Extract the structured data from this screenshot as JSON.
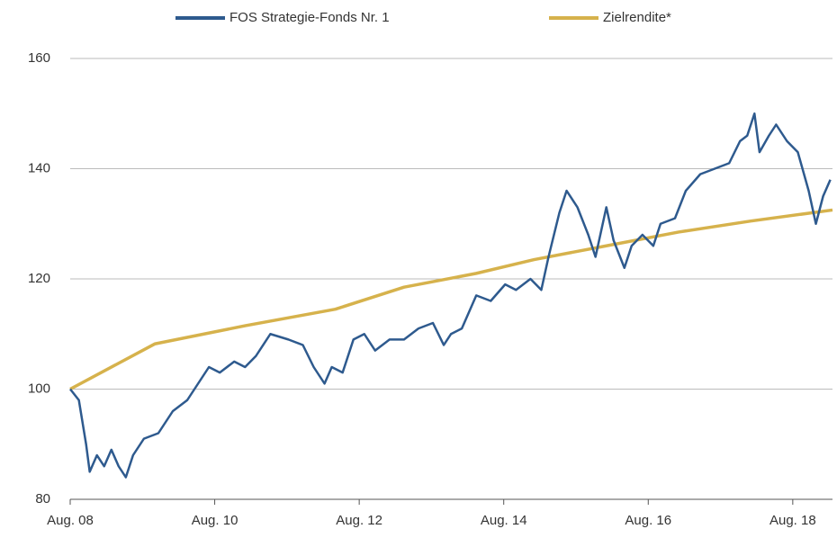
{
  "chart_data": {
    "type": "line",
    "series": [
      {
        "name": "FOS Strategie-Fonds Nr. 1",
        "color": "#2e5a8e",
        "x": [
          2008.58,
          2008.7,
          2008.8,
          2008.85,
          2008.95,
          2009.05,
          2009.15,
          2009.25,
          2009.35,
          2009.45,
          2009.6,
          2009.8,
          2010.0,
          2010.2,
          2010.35,
          2010.5,
          2010.65,
          2010.85,
          2011.0,
          2011.15,
          2011.35,
          2011.6,
          2011.8,
          2011.95,
          2012.1,
          2012.2,
          2012.35,
          2012.5,
          2012.65,
          2012.8,
          2013.0,
          2013.2,
          2013.4,
          2013.6,
          2013.75,
          2013.85,
          2014.0,
          2014.2,
          2014.4,
          2014.6,
          2014.75,
          2014.95,
          2015.1,
          2015.2,
          2015.35,
          2015.45,
          2015.6,
          2015.75,
          2015.85,
          2016.0,
          2016.1,
          2016.25,
          2016.35,
          2016.5,
          2016.65,
          2016.75,
          2016.95,
          2017.1,
          2017.3,
          2017.5,
          2017.7,
          2017.85,
          2017.95,
          2018.05,
          2018.12,
          2018.25,
          2018.35,
          2018.5,
          2018.65,
          2018.8,
          2018.9,
          2019.0,
          2019.1
        ],
        "values": [
          100,
          98,
          90,
          85,
          88,
          86,
          89,
          86,
          84,
          88,
          91,
          92,
          96,
          98,
          101,
          104,
          103,
          105,
          104,
          106,
          110,
          109,
          108,
          104,
          101,
          104,
          103,
          109,
          110,
          107,
          109,
          109,
          111,
          112,
          108,
          110,
          111,
          117,
          116,
          119,
          118,
          120,
          118,
          124,
          132,
          136,
          133,
          128,
          124,
          133,
          127,
          122,
          126,
          128,
          126,
          130,
          131,
          136,
          139,
          140,
          141,
          145,
          146,
          150,
          143,
          146,
          148,
          145,
          143,
          136,
          130,
          135,
          138
        ]
      },
      {
        "name": "Zielrendite*",
        "color": "#d6b24c",
        "x": [
          2008.58,
          2009.75,
          2011.0,
          2012.25,
          2013.2,
          2014.2,
          2015.0,
          2016.0,
          2017.0,
          2018.0,
          2019.13
        ],
        "values": [
          100,
          108.2,
          111.5,
          114.5,
          118.5,
          121,
          123.5,
          126,
          128.5,
          130.5,
          132.5
        ]
      }
    ],
    "xlim": [
      2008.58,
      2019.13
    ],
    "xticks": [
      {
        "value": 2008.58,
        "label": "Aug. 08"
      },
      {
        "value": 2010.58,
        "label": "Aug. 10"
      },
      {
        "value": 2012.58,
        "label": "Aug. 12"
      },
      {
        "value": 2014.58,
        "label": "Aug. 14"
      },
      {
        "value": 2016.58,
        "label": "Aug. 16"
      },
      {
        "value": 2018.58,
        "label": "Aug. 18"
      }
    ],
    "ylim": [
      80,
      160
    ],
    "yticks": [
      80,
      100,
      120,
      140,
      160
    ],
    "grid": true
  }
}
